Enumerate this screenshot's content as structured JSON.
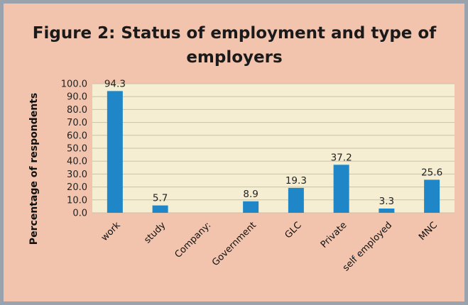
{
  "chart_data": {
    "type": "bar",
    "title": "Figure 2: Status of employment and type of employers",
    "ylabel": "Percentage of respondents",
    "xlabel": "",
    "categories": [
      "work",
      "study",
      "Company:",
      "Government",
      "GLC",
      "Private",
      "self employed",
      "MNC"
    ],
    "values": [
      94.3,
      5.7,
      null,
      8.9,
      19.3,
      37.2,
      3.3,
      25.6
    ],
    "data_labels": [
      "94.3",
      "5.7",
      "",
      "8.9",
      "19.3",
      "37.2",
      "3.3",
      "25.6"
    ],
    "ylim": [
      0,
      100
    ],
    "yticks": [
      "0.0",
      "10.0",
      "20.0",
      "30.0",
      "40.0",
      "50.0",
      "60.0",
      "70.0",
      "80.0",
      "90.0",
      "100.0"
    ],
    "grid": true,
    "legend": "none",
    "bar_color": "#1f87c7",
    "plot_bg": "#f6eed2",
    "grid_color": "#c9c2a6"
  }
}
